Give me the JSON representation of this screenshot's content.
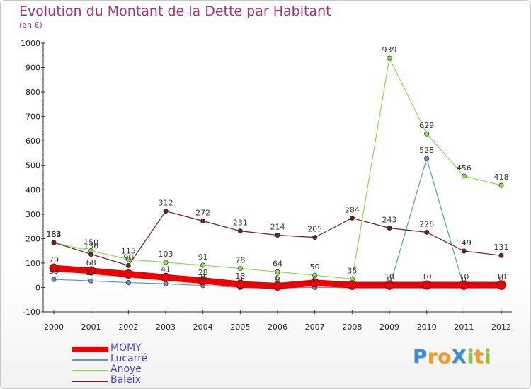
{
  "title": "Evolution du Montant de la Dette par Habitant",
  "subtitle": "(en €)",
  "logo": {
    "letters": [
      {
        "char": "P",
        "color": "#3a8fd9"
      },
      {
        "char": "r",
        "color": "#f39c1f"
      },
      {
        "char": "o",
        "color": "#f39c1f"
      },
      {
        "char": "X",
        "color": "#3a8fd9"
      },
      {
        "char": "i",
        "color": "#8cc43c"
      },
      {
        "char": "t",
        "color": "#f39c1f"
      },
      {
        "char": "i",
        "color": "#8cc43c"
      }
    ]
  },
  "chart_data": {
    "type": "line",
    "x": [
      "2000",
      "2001",
      "2002",
      "2003",
      "2004",
      "2005",
      "2006",
      "2007",
      "2008",
      "2009",
      "2010",
      "2011",
      "2012"
    ],
    "ylim": [
      -100,
      1000
    ],
    "yticks": [
      "-100",
      "0",
      "100",
      "200",
      "300",
      "400",
      "500",
      "600",
      "700",
      "800",
      "900",
      "1000"
    ],
    "grid": false,
    "legend": "bottom-left",
    "series": [
      {
        "name": "MOMY",
        "color": "#ee0000",
        "values": [
          79,
          68,
          55,
          41,
          28,
          13,
          6,
          19,
          10,
          10,
          10,
          10,
          10
        ],
        "labels": [
          "79",
          "68",
          "",
          "41",
          "28",
          "13",
          "6",
          "",
          "",
          "10",
          "10",
          "10",
          "10"
        ],
        "width": 9
      },
      {
        "name": "Lucarré",
        "color": "#5a96d2",
        "values": [
          33,
          27,
          20,
          15,
          8,
          0,
          0,
          0,
          0,
          0,
          528,
          0,
          0
        ],
        "labels": [
          "33",
          "27",
          "",
          "",
          "8",
          "0",
          "0",
          "0",
          "",
          "0",
          "528",
          "0",
          "0"
        ],
        "width": 1.2
      },
      {
        "name": "Anoye",
        "color": "#88dd55",
        "values": [
          183,
          150,
          115,
          103,
          91,
          78,
          64,
          50,
          35,
          939,
          629,
          456,
          418
        ],
        "labels": [
          "183",
          "150",
          "115",
          "103",
          "91",
          "78",
          "64",
          "50",
          "35",
          "939",
          "629",
          "456",
          "418"
        ],
        "width": 1.2
      },
      {
        "name": "Baleix",
        "color": "#6e1e1e",
        "values": [
          184,
          136,
          90,
          312,
          272,
          231,
          214,
          205,
          284,
          243,
          226,
          149,
          131
        ],
        "labels": [
          "184",
          "136",
          "90",
          "312",
          "272",
          "231",
          "214",
          "205",
          "284",
          "243",
          "226",
          "149",
          "131"
        ],
        "width": 1.2
      }
    ]
  }
}
